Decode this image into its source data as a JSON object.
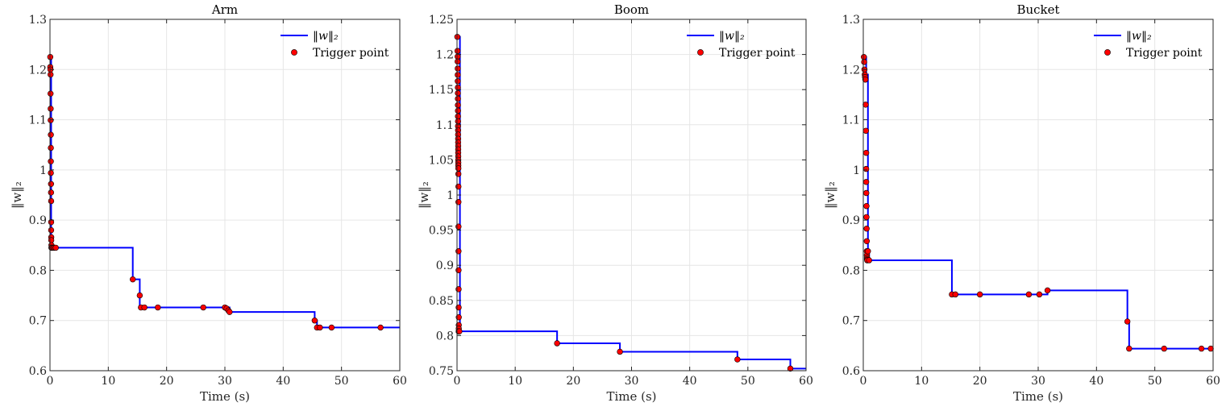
{
  "chart_data": [
    {
      "type": "line",
      "title": "Arm",
      "xlabel": "Time (s)",
      "ylabel": "‖w‖₂",
      "xlim": [
        0,
        60
      ],
      "ylim": [
        0.6,
        1.3
      ],
      "xticks": [
        0,
        10,
        20,
        30,
        40,
        50,
        60
      ],
      "yticks": [
        0.6,
        0.7,
        0.8,
        0.9,
        1,
        1.1,
        1.2,
        1.3
      ],
      "xtick_labels": [
        "0",
        "10",
        "20",
        "30",
        "40",
        "50",
        "60"
      ],
      "ytick_labels": [
        "0.6",
        "0.7",
        "0.8",
        "0.9",
        "1",
        "1.1",
        "1.2",
        "1.3"
      ],
      "grid": true,
      "legend_position": "top-right",
      "legend": [
        "‖w‖₂",
        "Trigger point"
      ],
      "series": [
        {
          "name": "‖w‖₂",
          "style": "step",
          "color": "#0000ff",
          "x": [
            0,
            0.2,
            0.3,
            0.4,
            0.6,
            1.0,
            14.2,
            15.4,
            16.2,
            18.5,
            26.3,
            30.2,
            30.8,
            45.4,
            45.8,
            46.3,
            48.3,
            56.7,
            60
          ],
          "y": [
            1.225,
            0.85,
            0.845,
            0.845,
            0.845,
            0.845,
            0.782,
            0.726,
            0.726,
            0.726,
            0.726,
            0.726,
            0.717,
            0.7,
            0.686,
            0.686,
            0.686,
            0.686,
            0.686
          ]
        },
        {
          "name": "Trigger point",
          "style": "markers",
          "color": "#ff0000",
          "x": [
            0.05,
            0.05,
            0.08,
            0.1,
            0.1,
            0.12,
            0.12,
            0.15,
            0.15,
            0.15,
            0.15,
            0.18,
            0.18,
            0.2,
            0.2,
            0.2,
            0.22,
            0.22,
            0.25,
            0.25,
            0.3,
            0.4,
            0.6,
            0.8,
            1.0,
            14.2,
            15.4,
            15.6,
            16.2,
            18.5,
            26.3,
            30.0,
            30.3,
            30.6,
            30.8,
            45.4,
            45.8,
            46.3,
            48.3,
            56.7
          ],
          "y": [
            1.225,
            1.205,
            1.2,
            1.19,
            1.152,
            1.122,
            1.099,
            1.07,
            1.044,
            1.017,
            0.994,
            0.972,
            0.955,
            0.938,
            0.896,
            0.88,
            0.866,
            0.86,
            0.85,
            0.845,
            0.845,
            0.845,
            0.845,
            0.845,
            0.845,
            0.782,
            0.75,
            0.726,
            0.726,
            0.726,
            0.726,
            0.726,
            0.724,
            0.72,
            0.717,
            0.7,
            0.686,
            0.686,
            0.686,
            0.686
          ]
        }
      ]
    },
    {
      "type": "line",
      "title": "Boom",
      "xlabel": "Time (s)",
      "ylabel": "‖w‖₂",
      "xlim": [
        0,
        60
      ],
      "ylim": [
        0.75,
        1.25
      ],
      "xticks": [
        0,
        10,
        20,
        30,
        40,
        50,
        60
      ],
      "yticks": [
        0.75,
        0.8,
        0.85,
        0.9,
        0.95,
        1,
        1.05,
        1.1,
        1.15,
        1.2,
        1.25
      ],
      "xtick_labels": [
        "0",
        "10",
        "20",
        "30",
        "40",
        "50",
        "60"
      ],
      "ytick_labels": [
        "0.75",
        "0.8",
        "0.85",
        "0.9",
        "0.95",
        "1",
        "1.05",
        "1.1",
        "1.15",
        "1.2",
        "1.25"
      ],
      "grid": true,
      "legend_position": "top-right",
      "legend": [
        "‖w‖₂",
        "Trigger point"
      ],
      "series": [
        {
          "name": "‖w‖₂",
          "style": "step",
          "color": "#0000ff",
          "x": [
            0,
            0.5,
            17.2,
            28.0,
            48.2,
            57.3,
            60
          ],
          "y": [
            1.225,
            0.806,
            0.789,
            0.777,
            0.766,
            0.753,
            0.753
          ]
        },
        {
          "name": "Trigger point",
          "style": "markers",
          "color": "#ff0000",
          "x": [
            0.05,
            0.08,
            0.1,
            0.1,
            0.12,
            0.12,
            0.12,
            0.14,
            0.14,
            0.15,
            0.15,
            0.16,
            0.16,
            0.17,
            0.17,
            0.18,
            0.18,
            0.19,
            0.19,
            0.2,
            0.2,
            0.2,
            0.21,
            0.21,
            0.22,
            0.22,
            0.23,
            0.23,
            0.24,
            0.24,
            0.25,
            0.25,
            0.26,
            0.27,
            0.28,
            0.3,
            0.3,
            0.3,
            0.3,
            0.3,
            0.3,
            0.3,
            0.3,
            0.3,
            0.3,
            0.35,
            0.4,
            17.2,
            28.0,
            48.2,
            57.3
          ],
          "y": [
            1.225,
            1.205,
            1.197,
            1.19,
            1.18,
            1.171,
            1.162,
            1.153,
            1.145,
            1.137,
            1.128,
            1.12,
            1.112,
            1.105,
            1.098,
            1.092,
            1.086,
            1.08,
            1.075,
            1.07,
            1.065,
            1.06,
            1.055,
            1.05,
            1.046,
            1.042,
            1.038,
            1.03,
            1.012,
            0.99,
            0.955,
            0.92,
            0.893,
            0.866,
            0.84,
            0.826,
            0.815,
            0.81,
            0.806,
            0.806,
            0.806,
            0.806,
            0.806,
            0.806,
            0.806,
            0.806,
            0.806,
            0.789,
            0.777,
            0.766,
            0.753
          ]
        }
      ]
    },
    {
      "type": "line",
      "title": "Bucket",
      "xlabel": "Time (s)",
      "ylabel": "‖w‖₂",
      "xlim": [
        0,
        60
      ],
      "ylim": [
        0.6,
        1.3
      ],
      "xticks": [
        0,
        10,
        20,
        30,
        40,
        50,
        60
      ],
      "yticks": [
        0.6,
        0.7,
        0.8,
        0.9,
        1,
        1.1,
        1.2,
        1.3
      ],
      "xtick_labels": [
        "0",
        "10",
        "20",
        "30",
        "40",
        "50",
        "60"
      ],
      "ytick_labels": [
        "0.6",
        "0.7",
        "0.8",
        "0.9",
        "1",
        "1.1",
        "1.2",
        "1.3"
      ],
      "grid": true,
      "legend_position": "top-right",
      "legend": [
        "‖w‖₂",
        "Trigger point"
      ],
      "series": [
        {
          "name": "‖w‖₂",
          "style": "step",
          "color": "#0000ff",
          "x": [
            0,
            0.5,
            0.8,
            1.0,
            15.2,
            15.8,
            20.0,
            28.4,
            30.2,
            31.6,
            45.3,
            45.6,
            51.6,
            58.0,
            59.6,
            60
          ],
          "y": [
            1.225,
            1.19,
            0.84,
            0.82,
            0.752,
            0.752,
            0.752,
            0.752,
            0.752,
            0.76,
            0.698,
            0.644,
            0.644,
            0.644,
            0.644,
            0.644
          ]
        },
        {
          "name": "Trigger point",
          "style": "markers",
          "color": "#ff0000",
          "x": [
            0.1,
            0.15,
            0.2,
            0.25,
            0.3,
            0.35,
            0.4,
            0.45,
            0.5,
            0.5,
            0.5,
            0.52,
            0.55,
            0.55,
            0.58,
            0.6,
            0.6,
            0.62,
            0.65,
            0.65,
            0.68,
            0.7,
            0.8,
            1.0,
            15.2,
            15.8,
            20.0,
            28.4,
            30.2,
            31.6,
            45.3,
            45.6,
            51.6,
            58.0,
            59.6
          ],
          "y": [
            1.225,
            1.215,
            1.2,
            1.19,
            1.185,
            1.18,
            1.13,
            1.078,
            1.034,
            1.002,
            0.976,
            0.954,
            0.928,
            0.906,
            0.883,
            0.858,
            0.838,
            0.83,
            0.825,
            0.822,
            0.82,
            0.82,
            0.838,
            0.82,
            0.752,
            0.752,
            0.752,
            0.752,
            0.752,
            0.76,
            0.698,
            0.644,
            0.644,
            0.644,
            0.644
          ]
        }
      ]
    }
  ]
}
